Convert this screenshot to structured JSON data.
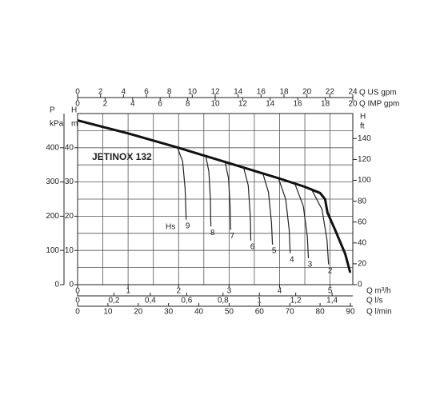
{
  "chart_data": {
    "type": "line",
    "title": "JETINOX 132",
    "hs_label": "Hs",
    "xlim": [
      0,
      5.45
    ],
    "xticks": [
      0,
      1,
      2,
      3,
      4,
      5
    ],
    "xminorticks": [
      0.5,
      1.5,
      2.5,
      3.5,
      4.5
    ],
    "xlabel": "Q m³/h",
    "ylim": [
      0,
      50
    ],
    "yticks": [
      0,
      10,
      20,
      30,
      40
    ],
    "yminorticks": [
      5,
      15,
      25,
      35,
      45
    ],
    "ylabel": [
      "H",
      "m"
    ],
    "x_axes": [
      {
        "label": "Q US gpm",
        "lim": [
          0,
          24
        ],
        "ticks": [
          0,
          2,
          4,
          6,
          8,
          10,
          12,
          14,
          16,
          18,
          20,
          22,
          24
        ]
      },
      {
        "label": "Q IMP gpm",
        "lim": [
          0,
          20
        ],
        "ticks": [
          0,
          2,
          4,
          6,
          8,
          10,
          12,
          14,
          16,
          18,
          20
        ]
      },
      {
        "label": "Q l/s",
        "lim": [
          0,
          1.514
        ],
        "ticks": [
          0,
          {
            "value": 0.2,
            "label": "0,2"
          },
          {
            "value": 0.4,
            "label": "0,4"
          },
          {
            "value": 0.6,
            "label": "0,6"
          },
          {
            "value": 0.8,
            "label": "0,8"
          },
          1,
          {
            "value": 1.2,
            "label": "1,2"
          },
          {
            "value": 1.4,
            "label": "1,4"
          }
        ]
      },
      {
        "label": "Q l/min",
        "lim": [
          0,
          90.8
        ],
        "ticks": [
          0,
          10,
          20,
          30,
          40,
          50,
          60,
          70,
          80,
          90
        ]
      }
    ],
    "y_axes": [
      {
        "label": [
          "P",
          "kPa"
        ],
        "lim": [
          0,
          500
        ],
        "ticks": [
          0,
          100,
          200,
          300,
          400
        ]
      },
      {
        "label": [
          "H",
          "ft"
        ],
        "lim": [
          0,
          164
        ],
        "ticks": [
          0,
          20,
          40,
          60,
          80,
          100,
          120,
          140
        ]
      }
    ],
    "curve": {
      "color": "#111111",
      "x": [
        0,
        1,
        2,
        3,
        4,
        4.5,
        4.8,
        4.9,
        4.95,
        5.1,
        5.3,
        5.4
      ],
      "values": [
        48,
        44.2,
        40,
        35.5,
        31,
        28.6,
        26.8,
        25,
        21,
        16,
        9,
        3.5
      ]
    },
    "series": [
      {
        "name": "9",
        "color": "#222222",
        "x": [
          1.98,
          2.08,
          2.13,
          2.15
        ],
        "values": [
          39.9,
          36,
          28,
          19
        ]
      },
      {
        "name": "8",
        "color": "#222222",
        "x": [
          2.54,
          2.6,
          2.63,
          2.64
        ],
        "values": [
          37.5,
          33,
          25,
          17
        ]
      },
      {
        "name": "7",
        "color": "#222222",
        "x": [
          2.92,
          2.99,
          3.02,
          3.03
        ],
        "values": [
          35.9,
          31,
          23,
          16
        ]
      },
      {
        "name": "6",
        "color": "#222222",
        "x": [
          3.29,
          3.38,
          3.42,
          3.43
        ],
        "values": [
          34.1,
          29,
          20,
          12.9
        ]
      },
      {
        "name": "5",
        "color": "#222222",
        "x": [
          3.67,
          3.78,
          3.84,
          3.86
        ],
        "values": [
          32.5,
          27,
          18,
          11.7
        ]
      },
      {
        "name": "4",
        "color": "#222222",
        "x": [
          3.98,
          4.12,
          4.19,
          4.21
        ],
        "values": [
          31,
          25,
          16,
          9.2
        ]
      },
      {
        "name": "3",
        "color": "#222222",
        "x": [
          4.3,
          4.47,
          4.55,
          4.57
        ],
        "values": [
          29.6,
          23,
          14,
          7.7
        ]
      },
      {
        "name": "2",
        "color": "#222222",
        "x": [
          4.62,
          4.84,
          4.94,
          4.97
        ],
        "values": [
          28.2,
          22,
          13,
          5.9
        ]
      }
    ]
  }
}
